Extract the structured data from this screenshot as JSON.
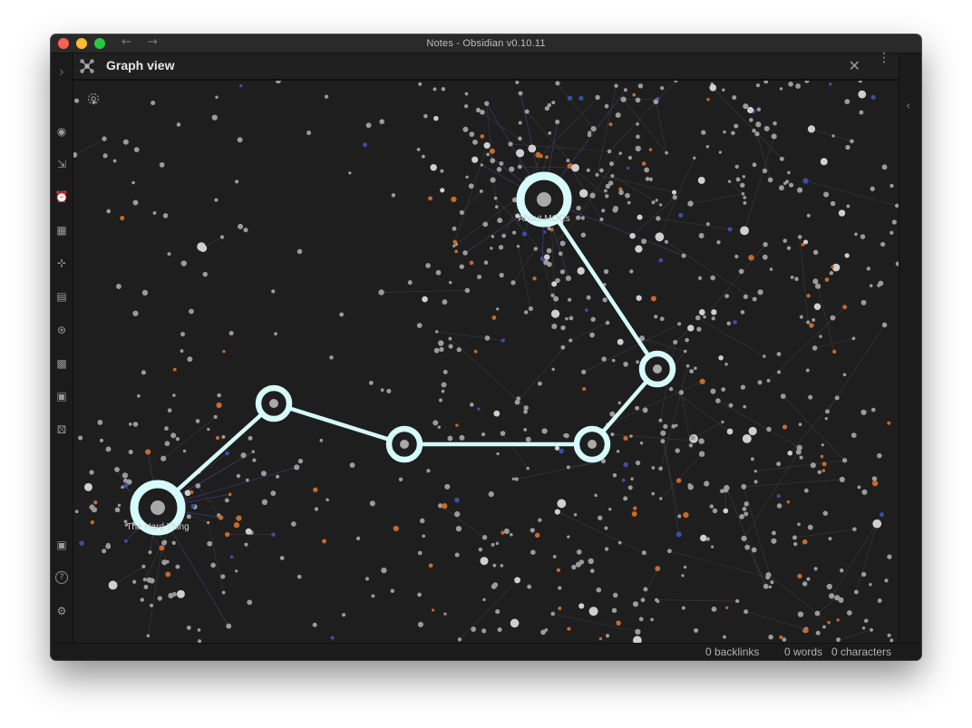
{
  "window": {
    "title": "Notes - Obsidian v0.10.11"
  },
  "titlebar": {
    "back_icon": "←",
    "forward_icon": "→"
  },
  "ribbon": {
    "collapse_icon": "›",
    "icons": [
      {
        "name": "record-icon",
        "glyph": "◉"
      },
      {
        "name": "open-file-icon",
        "glyph": "⇲"
      },
      {
        "name": "alarm-clock-icon",
        "glyph": "⏰"
      },
      {
        "name": "table-icon",
        "glyph": "▦"
      },
      {
        "name": "graph-network-icon",
        "glyph": "⊹"
      },
      {
        "name": "note-stack-icon",
        "glyph": "▤"
      },
      {
        "name": "local-graph-icon",
        "glyph": "⊛"
      },
      {
        "name": "grid-icon",
        "glyph": "▩"
      },
      {
        "name": "calendar-check-icon",
        "glyph": "▣"
      },
      {
        "name": "dice-icon",
        "glyph": "⚄"
      },
      {
        "name": "vault-icon",
        "glyph": "▣"
      },
      {
        "name": "help-icon",
        "glyph": "?"
      },
      {
        "name": "settings-icon",
        "glyph": "⚙"
      }
    ]
  },
  "pane": {
    "title": "Graph view",
    "close_icon": "✕",
    "more_icon": "⋮"
  },
  "right_rail": {
    "expand_icon": "‹"
  },
  "graph": {
    "path_nodes": [
      {
        "label": "The Hard Thing",
        "big": true
      },
      {
        "label": "",
        "big": false
      },
      {
        "label": "",
        "big": false
      },
      {
        "label": "",
        "big": false
      },
      {
        "label": "",
        "big": false
      },
      {
        "label": "About MOCs",
        "big": true
      }
    ],
    "colors": {
      "highlight": "#d6fbfb",
      "node": "#9b9b9b",
      "node_orange": "#c76a2a",
      "node_blue": "#3a4fa6",
      "edge": "#3b3b3b"
    }
  },
  "status": {
    "backlinks": "0 backlinks",
    "words": "0 words",
    "characters": "0 characters"
  }
}
